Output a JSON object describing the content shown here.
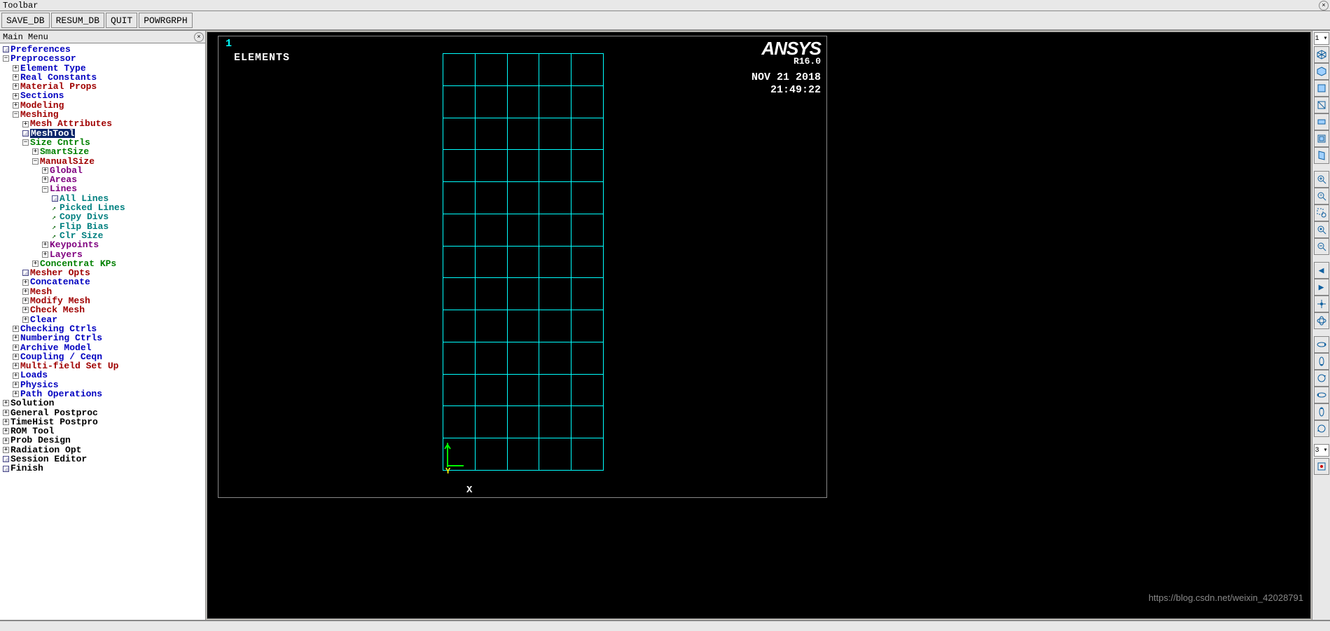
{
  "window": {
    "title": "Toolbar"
  },
  "toolbar": {
    "save_db": "SAVE_DB",
    "resum_db": "RESUM_DB",
    "quit": "QUIT",
    "powrgrph": "POWRGRPH"
  },
  "left_panel": {
    "title": "Main Menu"
  },
  "tree": {
    "preferences": "Preferences",
    "preprocessor": "Preprocessor",
    "element_type": "Element Type",
    "real_constants": "Real Constants",
    "material_props": "Material Props",
    "sections": "Sections",
    "modeling": "Modeling",
    "meshing": "Meshing",
    "mesh_attributes": "Mesh Attributes",
    "meshtool": "MeshTool",
    "size_cntrls": "Size Cntrls",
    "smartsize": "SmartSize",
    "manualsize": "ManualSize",
    "global": "Global",
    "areas": "Areas",
    "lines": "Lines",
    "all_lines": "All Lines",
    "picked_lines": "Picked Lines",
    "copy_divs": "Copy Divs",
    "flip_bias": "Flip Bias",
    "clr_size": "Clr Size",
    "keypoints": "Keypoints",
    "layers": "Layers",
    "concentrat_kps": "Concentrat KPs",
    "mesher_opts": "Mesher Opts",
    "concatenate": "Concatenate",
    "mesh": "Mesh",
    "modify_mesh": "Modify Mesh",
    "check_mesh": "Check Mesh",
    "clear": "Clear",
    "checking_ctrls": "Checking Ctrls",
    "numbering_ctrls": "Numbering Ctrls",
    "archive_model": "Archive Model",
    "coupling_ceqn": "Coupling / Ceqn",
    "multifield_setup": "Multi-field Set Up",
    "loads": "Loads",
    "physics": "Physics",
    "path_operations": "Path Operations",
    "solution": "Solution",
    "general_postproc": "General Postproc",
    "timehist_postproc": "TimeHist Postpro",
    "rom_tool": "ROM Tool",
    "prob_design": "Prob Design",
    "radiation_opt": "Radiation Opt",
    "session_editor": "Session Editor",
    "finish": "Finish"
  },
  "viewport": {
    "plot_number": "1",
    "plot_type": "ELEMENTS",
    "brand": "ANSYS",
    "version": "R16.0",
    "date": "NOV 21 2018",
    "time": "21:49:22",
    "axis_y": "Y",
    "axis_x": "X",
    "mesh_rows": 13,
    "mesh_cols": 5,
    "mesh_color": "#00ffff",
    "bg_color": "#000000"
  },
  "right_toolbar": {
    "top_select": "1 ▾",
    "bottom_select": "3 ▾"
  },
  "watermark": "https://blog.csdn.net/weixin_42028791"
}
